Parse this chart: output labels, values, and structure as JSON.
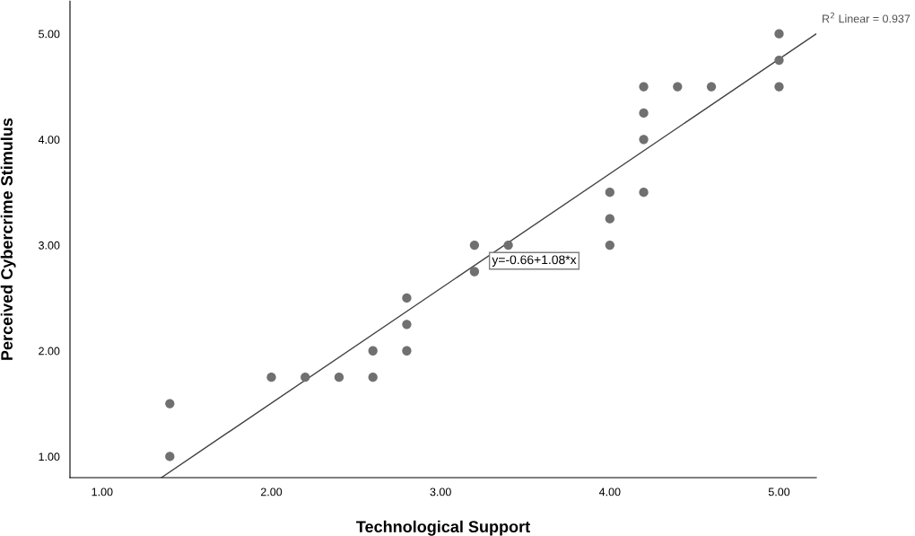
{
  "chart_data": {
    "type": "scatter",
    "xlabel": "Technological Support",
    "ylabel": "Perceived Cybercrime Stimulus",
    "series": [
      {
        "color": "#707070",
        "marker": "circle",
        "x": [
          1.4,
          1.4,
          2.0,
          2.2,
          2.4,
          2.6,
          2.6,
          2.8,
          2.8,
          2.8,
          3.2,
          3.2,
          3.4,
          4.0,
          4.0,
          4.0,
          4.2,
          4.2,
          4.2,
          4.2,
          4.4,
          4.6,
          5.0,
          5.0,
          5.0
        ],
        "values": [
          1.5,
          1.0,
          1.75,
          1.75,
          1.75,
          2.0,
          1.75,
          2.5,
          2.25,
          2.0,
          3.0,
          2.75,
          3.0,
          3.5,
          3.25,
          3.0,
          4.5,
          4.25,
          4.0,
          3.5,
          4.5,
          4.5,
          5.0,
          4.75,
          4.5
        ]
      },
      {
        "type": "line",
        "color": "#404040",
        "marker": "none",
        "line_style": "solid",
        "x": [
          1.35,
          5.22
        ],
        "values": [
          0.8,
          5.0
        ]
      }
    ],
    "annotations": [
      "y=-0.66+1.08*x",
      "R$^{2}$ Linear = 0.937"
    ],
    "xlim": [
      0.81,
      5.22
    ],
    "ylim": [
      0.8,
      5.31
    ],
    "xticks": [
      {
        "value": 1,
        "label": "1.00"
      },
      {
        "value": 2,
        "label": "2.00"
      },
      {
        "value": 3,
        "label": "3.00"
      },
      {
        "value": 4,
        "label": "4.00"
      },
      {
        "value": 5,
        "label": "5.00"
      }
    ],
    "yticks": [
      {
        "value": 1,
        "label": "1.00"
      },
      {
        "value": 2,
        "label": "2.00"
      },
      {
        "value": 3,
        "label": "3.00"
      },
      {
        "value": 4,
        "label": "4.00"
      },
      {
        "value": 5,
        "label": "5.00"
      }
    ],
    "grid": false,
    "legend": false
  }
}
